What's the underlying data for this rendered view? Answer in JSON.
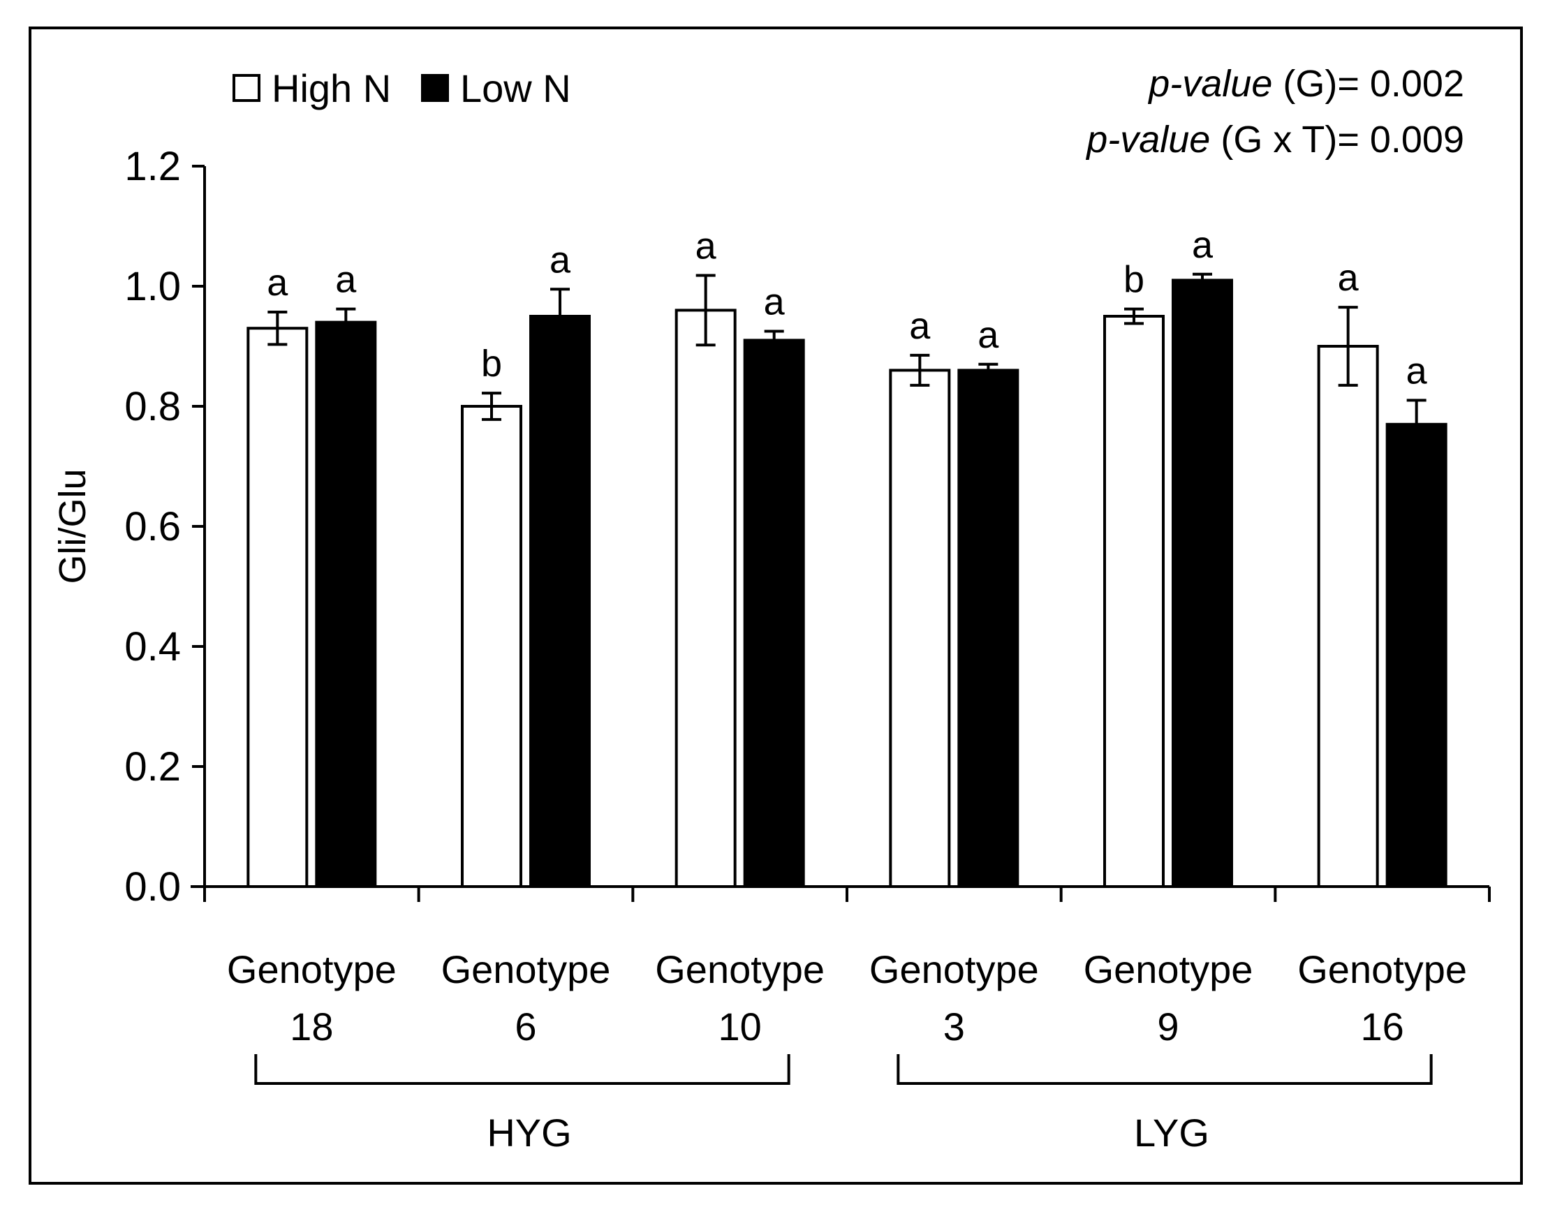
{
  "chart_data": {
    "type": "bar",
    "title": "",
    "xlabel": "",
    "ylabel": "Gli/Glu",
    "ylim": [
      0,
      1.2
    ],
    "yticks": [
      "0.0",
      "0.2",
      "0.4",
      "0.6",
      "0.8",
      "1.0",
      "1.2"
    ],
    "grid": false,
    "legend_position": "top-left",
    "categories": [
      {
        "line1": "Genotype",
        "line2": "18"
      },
      {
        "line1": "Genotype",
        "line2": "6"
      },
      {
        "line1": "Genotype",
        "line2": "10"
      },
      {
        "line1": "Genotype",
        "line2": "3"
      },
      {
        "line1": "Genotype",
        "line2": "9"
      },
      {
        "line1": "Genotype",
        "line2": "16"
      }
    ],
    "series": [
      {
        "name": "High N",
        "color": "#ffffff",
        "values": [
          0.93,
          0.8,
          0.96,
          0.86,
          0.95,
          0.9
        ],
        "errors": [
          0.027,
          0.022,
          0.058,
          0.025,
          0.012,
          0.065
        ],
        "letters": [
          "a",
          "b",
          "a",
          "a",
          "b",
          "a"
        ]
      },
      {
        "name": "Low N",
        "color": "#000000",
        "values": [
          0.94,
          0.95,
          0.91,
          0.86,
          1.01,
          0.77
        ],
        "errors": [
          0.022,
          0.045,
          0.015,
          0.01,
          0.01,
          0.04
        ],
        "letters": [
          "a",
          "a",
          "a",
          "a",
          "a",
          "a"
        ]
      }
    ],
    "groups": [
      {
        "label": "HYG",
        "start": 0,
        "end": 2
      },
      {
        "label": "LYG",
        "start": 3,
        "end": 5
      }
    ],
    "annotations": [
      {
        "italic": "p-value",
        "rest": " (G)= 0.002"
      },
      {
        "italic": "p-value",
        "rest": " (G x T)= 0.009"
      }
    ]
  }
}
